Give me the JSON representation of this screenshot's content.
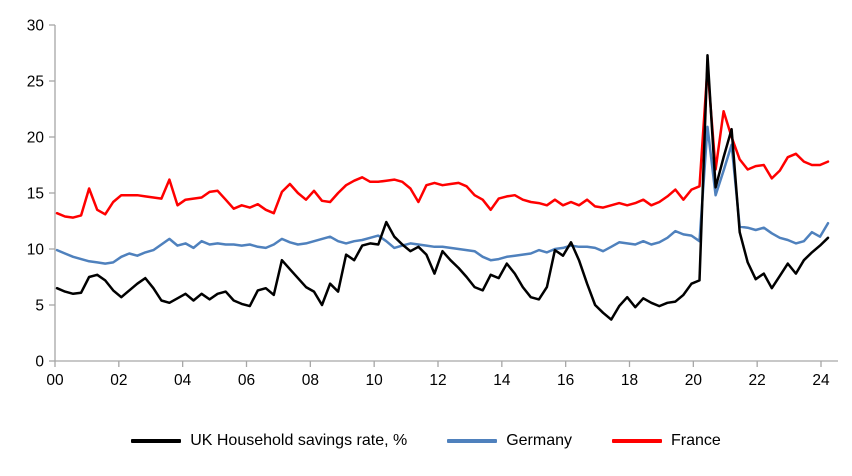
{
  "chart_data": {
    "type": "line",
    "title": "",
    "frequency": "quarterly",
    "x_start": "2000Q1",
    "x_end": "2024Q1",
    "x_tick_labels": [
      "00",
      "02",
      "04",
      "06",
      "08",
      "10",
      "12",
      "14",
      "16",
      "18",
      "20",
      "22",
      "24"
    ],
    "y_ticks": [
      0,
      5,
      10,
      15,
      20,
      25,
      30
    ],
    "ylim": [
      0,
      30
    ],
    "grid": false,
    "legend_position": "bottom",
    "series": [
      {
        "name": "UK Household savings rate, %",
        "color": "#000000",
        "z": 3,
        "values": [
          6.5,
          6.2,
          6.0,
          6.1,
          7.5,
          7.7,
          7.2,
          6.3,
          5.7,
          6.3,
          6.9,
          7.4,
          6.5,
          5.4,
          5.2,
          5.6,
          6.0,
          5.4,
          6.0,
          5.5,
          6.0,
          6.2,
          5.4,
          5.1,
          4.9,
          6.3,
          6.5,
          5.9,
          9.0,
          8.2,
          7.4,
          6.6,
          6.2,
          5.0,
          6.9,
          6.2,
          9.5,
          9.0,
          10.3,
          10.5,
          10.4,
          12.4,
          11.1,
          10.4,
          9.8,
          10.2,
          9.5,
          7.8,
          9.8,
          9.0,
          8.3,
          7.5,
          6.6,
          6.3,
          7.7,
          7.4,
          8.7,
          7.8,
          6.6,
          5.7,
          5.5,
          6.6,
          9.9,
          9.4,
          10.6,
          9.0,
          6.9,
          5.0,
          4.3,
          3.7,
          4.9,
          5.7,
          4.8,
          5.6,
          5.2,
          4.9,
          5.2,
          5.3,
          5.9,
          6.9,
          7.2,
          27.3,
          15.5,
          18.2,
          20.7,
          11.5,
          8.8,
          7.3,
          7.8,
          6.5,
          7.6,
          8.7,
          7.8,
          9.0,
          9.7,
          10.3,
          11.0
        ]
      },
      {
        "name": "Germany",
        "color": "#4F81BD",
        "z": 1,
        "values": [
          9.9,
          9.6,
          9.3,
          9.1,
          8.9,
          8.8,
          8.7,
          8.8,
          9.3,
          9.6,
          9.4,
          9.7,
          9.9,
          10.4,
          10.9,
          10.3,
          10.5,
          10.1,
          10.7,
          10.4,
          10.5,
          10.4,
          10.4,
          10.3,
          10.4,
          10.2,
          10.1,
          10.4,
          10.9,
          10.6,
          10.4,
          10.5,
          10.7,
          10.9,
          11.1,
          10.7,
          10.5,
          10.7,
          10.8,
          11.0,
          11.2,
          10.7,
          10.1,
          10.3,
          10.5,
          10.4,
          10.3,
          10.2,
          10.2,
          10.1,
          10.0,
          9.9,
          9.8,
          9.3,
          9.0,
          9.1,
          9.3,
          9.4,
          9.5,
          9.6,
          9.9,
          9.7,
          10.0,
          10.1,
          10.3,
          10.2,
          10.2,
          10.1,
          9.8,
          10.2,
          10.6,
          10.5,
          10.4,
          10.7,
          10.4,
          10.6,
          11.0,
          11.6,
          11.3,
          11.2,
          10.7,
          20.9,
          14.8,
          17.0,
          19.3,
          12.0,
          11.9,
          11.7,
          11.9,
          11.4,
          11.0,
          10.8,
          10.5,
          10.7,
          11.5,
          11.1,
          12.3
        ]
      },
      {
        "name": "France",
        "color": "#FF0000",
        "z": 2,
        "values": [
          13.2,
          12.9,
          12.8,
          13.0,
          15.4,
          13.5,
          13.1,
          14.2,
          14.8,
          14.8,
          14.8,
          14.7,
          14.6,
          14.5,
          16.2,
          13.9,
          14.4,
          14.5,
          14.6,
          15.1,
          15.2,
          14.4,
          13.6,
          13.9,
          13.7,
          14.0,
          13.5,
          13.2,
          15.1,
          15.8,
          15.0,
          14.4,
          15.2,
          14.3,
          14.2,
          15.0,
          15.7,
          16.1,
          16.4,
          16.0,
          16.0,
          16.1,
          16.2,
          16.0,
          15.4,
          14.2,
          15.7,
          15.9,
          15.7,
          15.8,
          15.9,
          15.6,
          14.8,
          14.4,
          13.5,
          14.5,
          14.7,
          14.8,
          14.4,
          14.2,
          14.1,
          13.9,
          14.4,
          13.9,
          14.2,
          13.9,
          14.4,
          13.8,
          13.7,
          13.9,
          14.1,
          13.9,
          14.1,
          14.4,
          13.9,
          14.2,
          14.7,
          15.3,
          14.4,
          15.3,
          15.6,
          26.2,
          17.1,
          22.3,
          20.0,
          18.0,
          17.1,
          17.4,
          17.5,
          16.3,
          17.0,
          18.2,
          18.5,
          17.8,
          17.5,
          17.5,
          17.8
        ]
      }
    ]
  },
  "colors": {
    "axis": "#A6A6A6",
    "text": "#000000",
    "background": "#FFFFFF"
  }
}
